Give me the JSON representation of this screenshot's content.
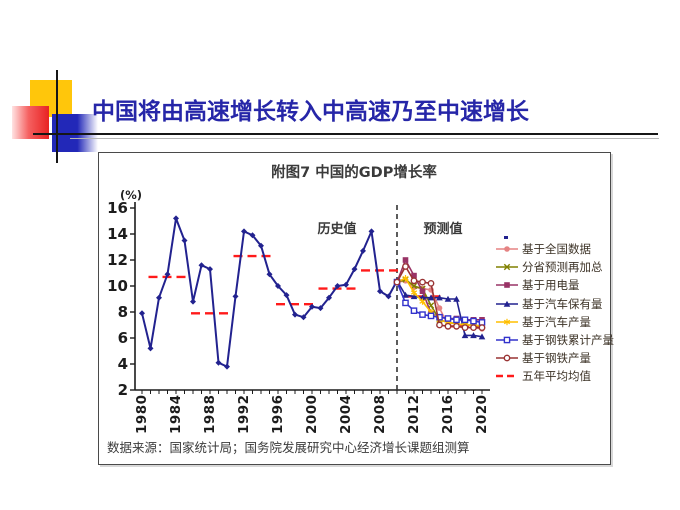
{
  "slide": {
    "title": "中国将由高速增长转入中高速乃至中速增长"
  },
  "chart": {
    "title": "附图7 中国的GDP增长率",
    "y_axis_unit": "(%)",
    "history_label": "历史值",
    "forecast_label": "预测值",
    "source": "数据来源：国家统计局；国务院发展研究中心经济增长课题组测算"
  },
  "chart_data": {
    "type": "line",
    "title": "附图7 中国的GDP增长率",
    "ylabel": "(%)",
    "ylim": [
      2,
      16
    ],
    "yticks": [
      2,
      4,
      6,
      8,
      10,
      12,
      14,
      16
    ],
    "xticks": [
      1980,
      1984,
      1988,
      1992,
      1996,
      2000,
      2004,
      2008,
      2012,
      2016,
      2020
    ],
    "xlim": [
      1980,
      2020
    ],
    "grid": false,
    "legend_position": "right-inside",
    "divider_year": 2010,
    "history": {
      "name": "GDP增长率（历史值）",
      "color": "#22228F",
      "marker": "diamond",
      "x_start": 1980,
      "values": [
        7.9,
        5.2,
        9.1,
        10.9,
        15.2,
        13.5,
        8.8,
        11.6,
        11.3,
        4.1,
        3.8,
        9.2,
        14.2,
        13.9,
        13.1,
        10.9,
        10.0,
        9.3,
        7.8,
        7.6,
        8.4,
        8.3,
        9.1,
        10.0,
        10.1,
        11.3,
        12.7,
        14.2,
        9.6,
        9.2,
        10.4
      ]
    },
    "series": [
      {
        "name": "基于全国数据",
        "color": "#E58383",
        "marker": "circle",
        "x_start": 2010,
        "values": [
          10.3,
          10.4,
          9.9,
          9.8,
          9.7,
          8.3,
          7.0,
          6.9,
          6.8,
          6.8,
          6.7
        ]
      },
      {
        "name": "分省预测再加总",
        "color": "#808000",
        "marker": "x",
        "x_start": 2010,
        "values": [
          10.3,
          10.5,
          10.0,
          9.8,
          8.5,
          7.4,
          7.2,
          7.1,
          7.0,
          7.0,
          6.9
        ]
      },
      {
        "name": "基于用电量",
        "color": "#993366",
        "marker": "square",
        "x_start": 2010,
        "values": [
          10.3,
          12.0,
          10.8,
          9.6,
          7.9,
          7.6,
          7.5,
          7.5,
          7.4,
          7.4,
          7.4
        ]
      },
      {
        "name": "基于汽车保有量",
        "color": "#22228F",
        "marker": "triangle",
        "x_start": 2010,
        "values": [
          10.4,
          9.3,
          9.2,
          9.1,
          9.1,
          9.1,
          9.0,
          9.0,
          6.2,
          6.2,
          6.1
        ]
      },
      {
        "name": "基于汽车产量",
        "color": "#FFBF00",
        "marker": "asterisk",
        "x_start": 2010,
        "values": [
          10.3,
          10.6,
          9.5,
          8.8,
          8.0,
          7.4,
          7.2,
          7.1,
          7.0,
          7.0,
          6.9
        ]
      },
      {
        "name": "基于钢铁累计产量",
        "color": "#3333CC",
        "marker": "square-open",
        "x_start": 2010,
        "values": [
          10.3,
          8.7,
          8.1,
          7.8,
          7.7,
          7.6,
          7.5,
          7.4,
          7.4,
          7.3,
          7.2
        ]
      },
      {
        "name": "基于钢铁产量",
        "color": "#993333",
        "marker": "circle-open",
        "x_start": 2010,
        "values": [
          10.3,
          11.5,
          10.4,
          10.3,
          10.2,
          7.0,
          6.9,
          6.9,
          6.8,
          6.8,
          6.8
        ]
      }
    ],
    "five_year_averages": {
      "name": "五年平均均值",
      "color": "#FF1A1A",
      "segments": [
        {
          "period": "1981-1985",
          "start": 1981,
          "end": 1985,
          "value": 10.7
        },
        {
          "period": "1986-1990",
          "start": 1986,
          "end": 1990,
          "value": 7.9
        },
        {
          "period": "1991-1995",
          "start": 1991,
          "end": 1995,
          "value": 12.3
        },
        {
          "period": "1996-2000",
          "start": 1996,
          "end": 2000,
          "value": 8.6
        },
        {
          "period": "2001-2005",
          "start": 2001,
          "end": 2005,
          "value": 9.8
        },
        {
          "period": "2006-2010",
          "start": 2006,
          "end": 2010,
          "value": 11.2
        },
        {
          "period": "2011-2015",
          "start": 2011,
          "end": 2015,
          "value": 9.2
        },
        {
          "period": "2016-2020",
          "start": 2016,
          "end": 2020,
          "value": 6.9
        }
      ]
    },
    "legend": [
      {
        "label": "基于全国数据",
        "color": "#E58383",
        "marker": "circle"
      },
      {
        "label": "分省预测再加总",
        "color": "#808000",
        "marker": "x"
      },
      {
        "label": "基于用电量",
        "color": "#993366",
        "marker": "square"
      },
      {
        "label": "基于汽车保有量",
        "color": "#22228F",
        "marker": "triangle"
      },
      {
        "label": "基于汽车产量",
        "color": "#FFBF00",
        "marker": "asterisk"
      },
      {
        "label": "基于钢铁累计产量",
        "color": "#3333CC",
        "marker": "square-open"
      },
      {
        "label": "基于钢铁产量",
        "color": "#993333",
        "marker": "circle-open"
      },
      {
        "label": "五年平均均值",
        "color": "#FF1A1A",
        "marker": "dash"
      }
    ]
  }
}
